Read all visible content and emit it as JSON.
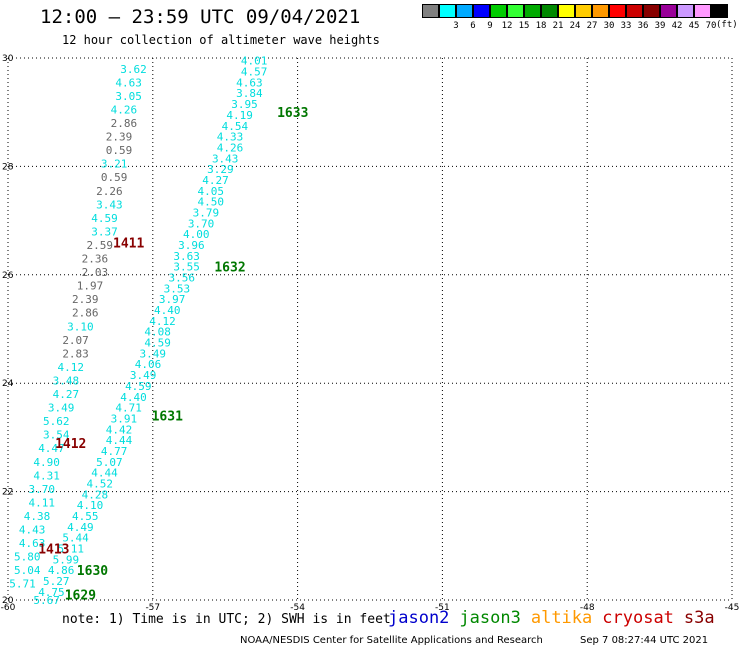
{
  "header": {
    "title": "12:00 – 23:59 UTC 09/04/2021",
    "subtitle": "12 hour collection of altimeter wave heights"
  },
  "colorbar": {
    "units": "(ft)",
    "items": [
      {
        "label": "",
        "color": "#808080"
      },
      {
        "label": "3",
        "color": "#00ffff"
      },
      {
        "label": "6",
        "color": "#00aaff"
      },
      {
        "label": "9",
        "color": "#0000ff"
      },
      {
        "label": "12",
        "color": "#00cc00"
      },
      {
        "label": "15",
        "color": "#33ff33"
      },
      {
        "label": "18",
        "color": "#00aa00"
      },
      {
        "label": "21",
        "color": "#008800"
      },
      {
        "label": "24",
        "color": "#ffff00"
      },
      {
        "label": "27",
        "color": "#ffcc00"
      },
      {
        "label": "30",
        "color": "#ff9900"
      },
      {
        "label": "33",
        "color": "#ff0000"
      },
      {
        "label": "36",
        "color": "#cc0000"
      },
      {
        "label": "39",
        "color": "#880000"
      },
      {
        "label": "42",
        "color": "#990099"
      },
      {
        "label": "45",
        "color": "#cc99ff"
      },
      {
        "label": "70",
        "color": "#ff99ff"
      },
      {
        "label": "",
        "color": "#000000"
      }
    ]
  },
  "map": {
    "lat_ticks": [
      "30",
      "28",
      "26",
      "24",
      "22",
      "20"
    ],
    "lon_ticks": [
      "-60",
      "-57",
      "-54",
      "-51",
      "-48",
      "-45"
    ],
    "lat_range": [
      20,
      30
    ],
    "lon_range": [
      -60,
      -45
    ],
    "track_labels": [
      {
        "text": "1633",
        "lon": -54.1,
        "lat": 29.0,
        "color": "#007700"
      },
      {
        "text": "1632",
        "lon": -55.4,
        "lat": 26.15,
        "color": "#007700"
      },
      {
        "text": "1631",
        "lon": -56.7,
        "lat": 23.4,
        "color": "#007700"
      },
      {
        "text": "1630",
        "lon": -58.25,
        "lat": 20.55,
        "color": "#007700"
      },
      {
        "text": "1629",
        "lon": -58.5,
        "lat": 20.1,
        "color": "#007700"
      },
      {
        "text": "1411",
        "lon": -57.5,
        "lat": 26.6,
        "color": "#880000"
      },
      {
        "text": "1412",
        "lon": -58.7,
        "lat": 22.9,
        "color": "#880000"
      },
      {
        "text": "1413",
        "lon": -59.05,
        "lat": 20.95,
        "color": "#880000"
      }
    ],
    "tracks": [
      {
        "name": "track-a",
        "points": [
          {
            "v": "3.62",
            "lon": -57.4,
            "lat": 29.8,
            "c": "#00dddd"
          },
          {
            "v": "4.63",
            "lon": -57.5,
            "lat": 29.55,
            "c": "#00dddd"
          },
          {
            "v": "3.05",
            "lon": -57.5,
            "lat": 29.3,
            "c": "#00dddd"
          },
          {
            "v": "4.26",
            "lon": -57.6,
            "lat": 29.05,
            "c": "#00dddd"
          },
          {
            "v": "2.86",
            "lon": -57.6,
            "lat": 28.8,
            "c": "#666666"
          },
          {
            "v": "2.39",
            "lon": -57.7,
            "lat": 28.55,
            "c": "#666666"
          },
          {
            "v": "0.59",
            "lon": -57.7,
            "lat": 28.3,
            "c": "#666666"
          },
          {
            "v": "3.21",
            "lon": -57.8,
            "lat": 28.05,
            "c": "#00dddd"
          },
          {
            "v": "0.59",
            "lon": -57.8,
            "lat": 27.8,
            "c": "#666666"
          },
          {
            "v": "2.26",
            "lon": -57.9,
            "lat": 27.55,
            "c": "#666666"
          },
          {
            "v": "3.43",
            "lon": -57.9,
            "lat": 27.3,
            "c": "#00dddd"
          },
          {
            "v": "4.59",
            "lon": -58.0,
            "lat": 27.05,
            "c": "#00dddd"
          },
          {
            "v": "3.37",
            "lon": -58.0,
            "lat": 26.8,
            "c": "#00dddd"
          },
          {
            "v": "2.59",
            "lon": -58.1,
            "lat": 26.55,
            "c": "#666666"
          },
          {
            "v": "2.36",
            "lon": -58.2,
            "lat": 26.3,
            "c": "#666666"
          },
          {
            "v": "2.03",
            "lon": -58.2,
            "lat": 26.05,
            "c": "#666666"
          },
          {
            "v": "1.97",
            "lon": -58.3,
            "lat": 25.8,
            "c": "#666666"
          },
          {
            "v": "2.39",
            "lon": -58.4,
            "lat": 25.55,
            "c": "#666666"
          },
          {
            "v": "2.86",
            "lon": -58.4,
            "lat": 25.3,
            "c": "#666666"
          },
          {
            "v": "3.10",
            "lon": -58.5,
            "lat": 25.05,
            "c": "#00dddd"
          },
          {
            "v": "2.07",
            "lon": -58.6,
            "lat": 24.8,
            "c": "#666666"
          },
          {
            "v": "2.83",
            "lon": -58.6,
            "lat": 24.55,
            "c": "#666666"
          },
          {
            "v": "4.12",
            "lon": -58.7,
            "lat": 24.3,
            "c": "#00dddd"
          },
          {
            "v": "3.48",
            "lon": -58.8,
            "lat": 24.05,
            "c": "#00dddd"
          },
          {
            "v": "4.27",
            "lon": -58.8,
            "lat": 23.8,
            "c": "#00dddd"
          },
          {
            "v": "3.49",
            "lon": -58.9,
            "lat": 23.55,
            "c": "#00dddd"
          },
          {
            "v": "5.62",
            "lon": -59.0,
            "lat": 23.3,
            "c": "#00dddd"
          },
          {
            "v": "3.54",
            "lon": -59.0,
            "lat": 23.05,
            "c": "#00dddd"
          },
          {
            "v": "4.47",
            "lon": -59.1,
            "lat": 22.8,
            "c": "#00dddd"
          },
          {
            "v": "4.90",
            "lon": -59.2,
            "lat": 22.55,
            "c": "#00dddd"
          },
          {
            "v": "4.31",
            "lon": -59.2,
            "lat": 22.3,
            "c": "#00dddd"
          },
          {
            "v": "3.70",
            "lon": -59.3,
            "lat": 22.05,
            "c": "#00dddd"
          },
          {
            "v": "4.11",
            "lon": -59.3,
            "lat": 21.8,
            "c": "#00dddd"
          },
          {
            "v": "4.38",
            "lon": -59.4,
            "lat": 21.55,
            "c": "#00dddd"
          },
          {
            "v": "4.43",
            "lon": -59.5,
            "lat": 21.3,
            "c": "#00dddd"
          },
          {
            "v": "4.63",
            "lon": -59.5,
            "lat": 21.05,
            "c": "#00dddd"
          },
          {
            "v": "5.80",
            "lon": -59.6,
            "lat": 20.8,
            "c": "#00dddd"
          },
          {
            "v": "5.04",
            "lon": -59.6,
            "lat": 20.55,
            "c": "#00dddd"
          },
          {
            "v": "5.71",
            "lon": -59.7,
            "lat": 20.3,
            "c": "#00dddd"
          }
        ]
      },
      {
        "name": "track-b",
        "points": [
          {
            "v": "4.01",
            "lon": -54.9,
            "lat": 29.95,
            "c": "#00dddd"
          },
          {
            "v": "4.57",
            "lon": -54.9,
            "lat": 29.75,
            "c": "#00dddd"
          },
          {
            "v": "4.63",
            "lon": -55.0,
            "lat": 29.55,
            "c": "#00dddd"
          },
          {
            "v": "3.84",
            "lon": -55.0,
            "lat": 29.35,
            "c": "#00dddd"
          },
          {
            "v": "3.95",
            "lon": -55.1,
            "lat": 29.15,
            "c": "#00dddd"
          },
          {
            "v": "4.19",
            "lon": -55.2,
            "lat": 28.95,
            "c": "#00dddd"
          },
          {
            "v": "4.54",
            "lon": -55.3,
            "lat": 28.75,
            "c": "#00dddd"
          },
          {
            "v": "4.33",
            "lon": -55.4,
            "lat": 28.55,
            "c": "#00dddd"
          },
          {
            "v": "4.26",
            "lon": -55.4,
            "lat": 28.35,
            "c": "#00dddd"
          },
          {
            "v": "3.43",
            "lon": -55.5,
            "lat": 28.15,
            "c": "#00dddd"
          },
          {
            "v": "3.29",
            "lon": -55.6,
            "lat": 27.95,
            "c": "#00dddd"
          },
          {
            "v": "4.27",
            "lon": -55.7,
            "lat": 27.75,
            "c": "#00dddd"
          },
          {
            "v": "4.05",
            "lon": -55.8,
            "lat": 27.55,
            "c": "#00dddd"
          },
          {
            "v": "4.50",
            "lon": -55.8,
            "lat": 27.35,
            "c": "#00dddd"
          },
          {
            "v": "3.79",
            "lon": -55.9,
            "lat": 27.15,
            "c": "#00dddd"
          },
          {
            "v": "3.70",
            "lon": -56.0,
            "lat": 26.95,
            "c": "#00dddd"
          },
          {
            "v": "4.00",
            "lon": -56.1,
            "lat": 26.75,
            "c": "#00dddd"
          },
          {
            "v": "3.96",
            "lon": -56.2,
            "lat": 26.55,
            "c": "#00dddd"
          },
          {
            "v": "3.63",
            "lon": -56.3,
            "lat": 26.35,
            "c": "#00dddd"
          },
          {
            "v": "3.55",
            "lon": -56.3,
            "lat": 26.15,
            "c": "#00dddd"
          },
          {
            "v": "3.56",
            "lon": -56.4,
            "lat": 25.95,
            "c": "#00dddd"
          },
          {
            "v": "3.53",
            "lon": -56.5,
            "lat": 25.75,
            "c": "#00dddd"
          },
          {
            "v": "3.97",
            "lon": -56.6,
            "lat": 25.55,
            "c": "#00dddd"
          },
          {
            "v": "4.40",
            "lon": -56.7,
            "lat": 25.35,
            "c": "#00dddd"
          },
          {
            "v": "4.12",
            "lon": -56.8,
            "lat": 25.15,
            "c": "#00dddd"
          },
          {
            "v": "4.08",
            "lon": -56.9,
            "lat": 24.95,
            "c": "#00dddd"
          },
          {
            "v": "4.59",
            "lon": -56.9,
            "lat": 24.75,
            "c": "#00dddd"
          },
          {
            "v": "3.49",
            "lon": -57.0,
            "lat": 24.55,
            "c": "#00dddd"
          },
          {
            "v": "4.06",
            "lon": -57.1,
            "lat": 24.35,
            "c": "#00dddd"
          },
          {
            "v": "3.49",
            "lon": -57.2,
            "lat": 24.15,
            "c": "#00dddd"
          },
          {
            "v": "4.59",
            "lon": -57.3,
            "lat": 23.95,
            "c": "#00dddd"
          },
          {
            "v": "4.40",
            "lon": -57.4,
            "lat": 23.75,
            "c": "#00dddd"
          },
          {
            "v": "4.71",
            "lon": -57.5,
            "lat": 23.55,
            "c": "#00dddd"
          },
          {
            "v": "3.91",
            "lon": -57.6,
            "lat": 23.35,
            "c": "#00dddd"
          },
          {
            "v": "4.42",
            "lon": -57.7,
            "lat": 23.15,
            "c": "#00dddd"
          },
          {
            "v": "4.44",
            "lon": -57.7,
            "lat": 22.95,
            "c": "#00dddd"
          },
          {
            "v": "4.77",
            "lon": -57.8,
            "lat": 22.75,
            "c": "#00dddd"
          },
          {
            "v": "5.07",
            "lon": -57.9,
            "lat": 22.55,
            "c": "#00dddd"
          },
          {
            "v": "4.44",
            "lon": -58.0,
            "lat": 22.35,
            "c": "#00dddd"
          },
          {
            "v": "4.52",
            "lon": -58.1,
            "lat": 22.15,
            "c": "#00dddd"
          },
          {
            "v": "4.28",
            "lon": -58.2,
            "lat": 21.95,
            "c": "#00dddd"
          },
          {
            "v": "4.10",
            "lon": -58.3,
            "lat": 21.75,
            "c": "#00dddd"
          },
          {
            "v": "4.55",
            "lon": -58.4,
            "lat": 21.55,
            "c": "#00dddd"
          },
          {
            "v": "4.49",
            "lon": -58.5,
            "lat": 21.35,
            "c": "#00dddd"
          },
          {
            "v": "5.44",
            "lon": -58.6,
            "lat": 21.15,
            "c": "#00dddd"
          },
          {
            "v": "5.11",
            "lon": -58.7,
            "lat": 20.95,
            "c": "#00dddd"
          },
          {
            "v": "5.99",
            "lon": -58.8,
            "lat": 20.75,
            "c": "#00dddd"
          },
          {
            "v": "4.86",
            "lon": -58.9,
            "lat": 20.55,
            "c": "#00dddd"
          },
          {
            "v": "5.27",
            "lon": -59.0,
            "lat": 20.35,
            "c": "#00dddd"
          },
          {
            "v": "4.75",
            "lon": -59.1,
            "lat": 20.15,
            "c": "#00dddd"
          },
          {
            "v": "5.67",
            "lon": -59.2,
            "lat": 20.0,
            "c": "#00dddd"
          }
        ]
      }
    ]
  },
  "footer": {
    "note": "note: 1) Time is in UTC; 2) SWH is in feet",
    "missions": [
      {
        "name": "jason2",
        "color": "#0000cc"
      },
      {
        "name": "jason3",
        "color": "#008800"
      },
      {
        "name": "altika",
        "color": "#ff9900"
      },
      {
        "name": "cryosat",
        "color": "#cc0000"
      },
      {
        "name": "s3a",
        "color": "#880000"
      }
    ],
    "credit": "NOAA/NESDIS Center for Satellite Applications and Research",
    "timestamp": "Sep  7 08:27:44 UTC 2021"
  }
}
